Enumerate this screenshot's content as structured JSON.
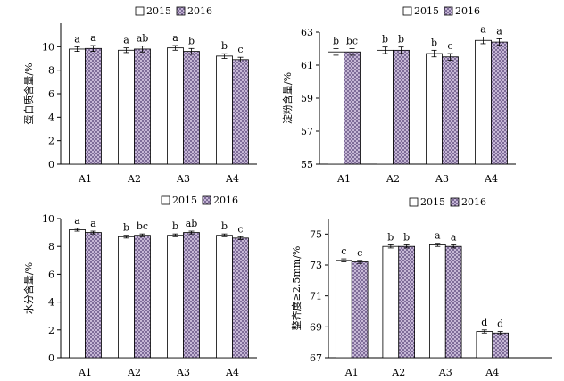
{
  "chart_data": [
    {
      "type": "bar",
      "ylabel": "蛋白质含量/%",
      "categories": [
        "A1",
        "A2",
        "A3",
        "A4"
      ],
      "ylim": [
        0,
        12
      ],
      "yticks": [
        0,
        2,
        4,
        6,
        8,
        10
      ],
      "series": [
        {
          "name": "2015",
          "values": [
            9.8,
            9.7,
            9.9,
            9.2
          ],
          "errors": [
            0.2,
            0.2,
            0.2,
            0.2
          ],
          "letters": [
            "a",
            "a",
            "a",
            "b"
          ]
        },
        {
          "name": "2016",
          "values": [
            9.85,
            9.8,
            9.6,
            8.9
          ],
          "errors": [
            0.25,
            0.25,
            0.25,
            0.2
          ],
          "letters": [
            "a",
            "ab",
            "b",
            "c"
          ]
        }
      ]
    },
    {
      "type": "bar",
      "ylabel": "淀粉含量/%",
      "categories": [
        "A1",
        "A2",
        "A3",
        "A4"
      ],
      "ylim": [
        55,
        63
      ],
      "yticks": [
        55,
        57,
        59,
        61,
        63
      ],
      "series": [
        {
          "name": "2015",
          "values": [
            61.8,
            61.9,
            61.7,
            62.5
          ],
          "errors": [
            0.2,
            0.2,
            0.2,
            0.2
          ],
          "letters": [
            "b",
            "b",
            "b",
            "a"
          ]
        },
        {
          "name": "2016",
          "values": [
            61.8,
            61.9,
            61.5,
            62.4
          ],
          "errors": [
            0.2,
            0.2,
            0.2,
            0.2
          ],
          "letters": [
            "bc",
            "b",
            "c",
            "a"
          ]
        }
      ]
    },
    {
      "type": "bar",
      "ylabel": "水分含量/%",
      "categories": [
        "A1",
        "A2",
        "A3",
        "A4"
      ],
      "ylim": [
        0,
        10
      ],
      "yticks": [
        0,
        2,
        4,
        6,
        8,
        10
      ],
      "series": [
        {
          "name": "2015",
          "values": [
            9.2,
            8.7,
            8.8,
            8.8
          ],
          "errors": [
            0.1,
            0.1,
            0.1,
            0.1
          ],
          "letters": [
            "a",
            "b",
            "b",
            "b"
          ]
        },
        {
          "name": "2016",
          "values": [
            9.0,
            8.8,
            9.0,
            8.6
          ],
          "errors": [
            0.1,
            0.1,
            0.1,
            0.1
          ],
          "letters": [
            "a",
            "bc",
            "ab",
            "c"
          ]
        }
      ]
    },
    {
      "type": "bar",
      "ylabel": "整齐度≥2.5mm/%",
      "categories": [
        "A1",
        "A2",
        "A3",
        "A4"
      ],
      "ylim": [
        67,
        76
      ],
      "yticks": [
        67,
        69,
        71,
        73,
        75
      ],
      "series": [
        {
          "name": "2015",
          "values": [
            73.3,
            74.2,
            74.3,
            68.7
          ],
          "errors": [
            0.1,
            0.1,
            0.1,
            0.1
          ],
          "letters": [
            "c",
            "b",
            "a",
            "d"
          ]
        },
        {
          "name": "2016",
          "values": [
            73.2,
            74.2,
            74.2,
            68.6
          ],
          "errors": [
            0.1,
            0.1,
            0.1,
            0.1
          ],
          "letters": [
            "c",
            "b",
            "a",
            "d"
          ]
        }
      ]
    }
  ]
}
